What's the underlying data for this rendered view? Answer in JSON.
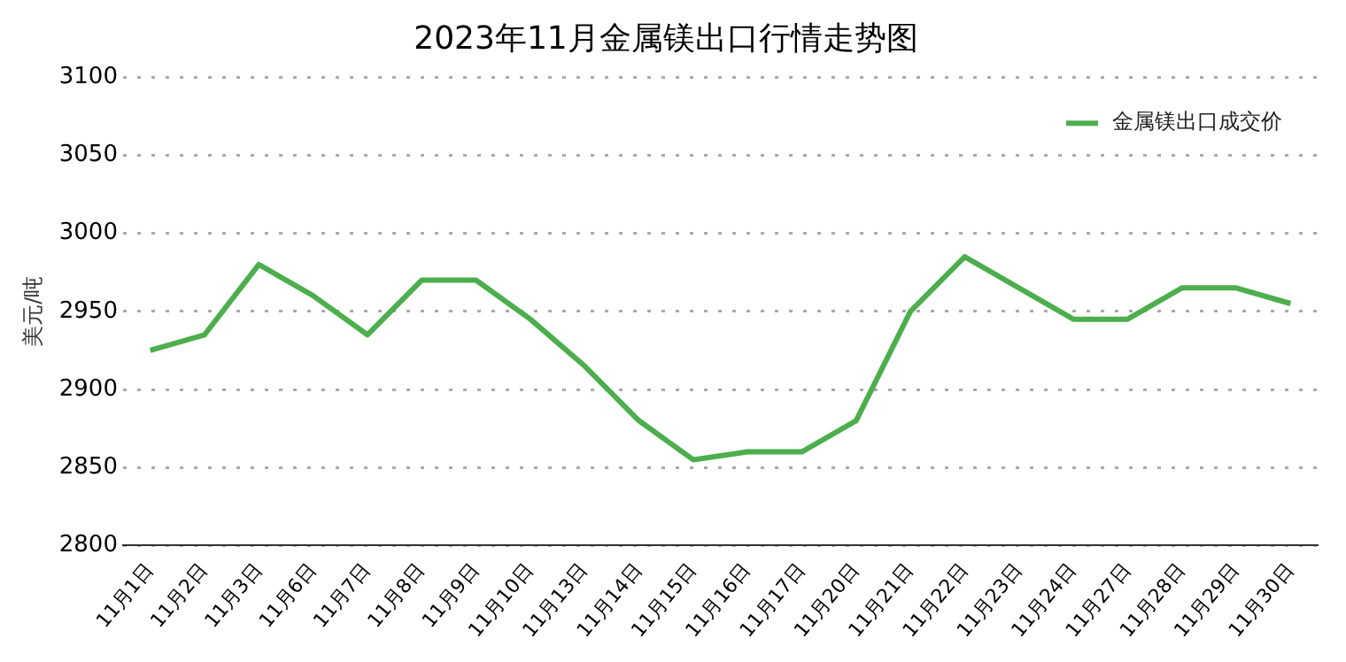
{
  "chart_data": {
    "type": "line",
    "title": "2023年11月金属镁出口行情走势图",
    "ylabel": "美元/吨",
    "categories": [
      "11月1日",
      "11月2日",
      "11月3日",
      "11月6日",
      "11月7日",
      "11月8日",
      "11月9日",
      "11月10日",
      "11月13日",
      "11月14日",
      "11月15日",
      "11月16日",
      "11月17日",
      "11月20日",
      "11月21日",
      "11月22日",
      "11月23日",
      "11月24日",
      "11月27日",
      "11月28日",
      "11月29日",
      "11月30日"
    ],
    "series": [
      {
        "name": "金属镁出口成交价",
        "color": "#4cae4c",
        "values": [
          2925,
          2935,
          2980,
          2960,
          2935,
          2970,
          2970,
          2945,
          2915,
          2880,
          2855,
          2860,
          2860,
          2880,
          2950,
          2985,
          2965,
          2945,
          2945,
          2965,
          2965,
          2955
        ]
      }
    ],
    "ylim": [
      2800,
      3100
    ],
    "yticks": [
      2800,
      2850,
      2900,
      2950,
      3000,
      3050,
      3100
    ],
    "grid": "y",
    "legend": "top right",
    "marker": "none",
    "line_style": "solid"
  }
}
